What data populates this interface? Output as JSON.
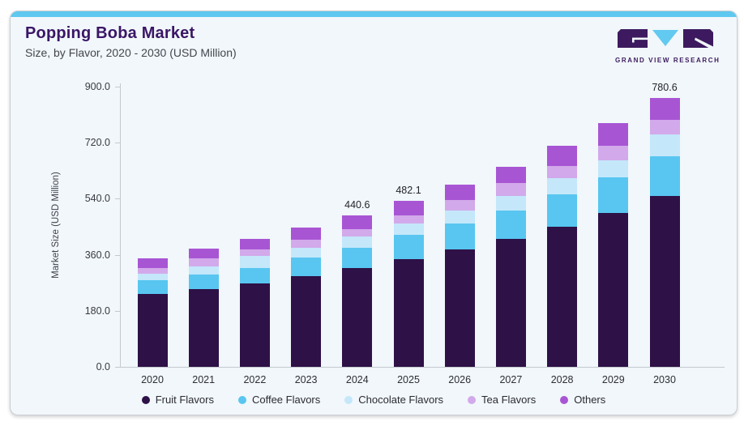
{
  "header": {
    "title": "Popping Boba Market",
    "subtitle": "Size, by Flavor, 2020 - 2030 (USD Million)"
  },
  "logo": {
    "text": "GRAND VIEW RESEARCH"
  },
  "colors": {
    "accent_bar": "#5ec8f0",
    "card_background": "#f1f7fa",
    "title_text": "#3a1666",
    "logo_purple": "#3d1a5f",
    "logo_blue": "#62c9f0",
    "axis_line": "#c4c9d0"
  },
  "chart_data": {
    "type": "bar",
    "stacked": true,
    "title": "Popping Boba Market",
    "subtitle": "Size, by Flavor, 2020 - 2030 (USD Million)",
    "ylabel": "Market Size (USD Million)",
    "xlabel": "",
    "ylim": [
      0,
      900
    ],
    "ytick_values": [
      0,
      180,
      360,
      540,
      720,
      900
    ],
    "ytick_labels": [
      "0.0",
      "180.0",
      "360.0",
      "540.0",
      "720.0",
      "900.0"
    ],
    "grid": false,
    "legend_position": "bottom",
    "categories": [
      "2020",
      "2021",
      "2022",
      "2023",
      "2024",
      "2025",
      "2026",
      "2027",
      "2028",
      "2029",
      "2030"
    ],
    "series": [
      {
        "name": "Fruit Flavors",
        "color": "#2e1147",
        "values": [
          211.6,
          225.0,
          243.1,
          264.3,
          286.1,
          312.2,
          340.9,
          372.4,
          407.7,
          446.7,
          496.1
        ]
      },
      {
        "name": "Coffee Flavors",
        "color": "#58c6f0",
        "values": [
          40.9,
          43.0,
          44.7,
          53.1,
          60.4,
          70.5,
          74.5,
          82.3,
          94.0,
          104.4,
          114.5
        ]
      },
      {
        "name": "Chocolate Flavors",
        "color": "#c4e7fa",
        "values": [
          17.9,
          23.5,
          33.6,
          29.2,
          31.3,
          33.6,
          37.6,
          41.4,
          47.0,
          48.4,
          64.2
        ]
      },
      {
        "name": "Tea Flavors",
        "color": "#d2a9ea",
        "values": [
          17.4,
          22.8,
          19.5,
          21.9,
          21.9,
          23.5,
          31.3,
          36.9,
          35.3,
          43.3,
          43.0
        ]
      },
      {
        "name": "Others",
        "color": "#a855d4",
        "values": [
          28.2,
          28.9,
          29.9,
          36.9,
          40.9,
          42.3,
          44.0,
          48.7,
          57.1,
          64.9,
          62.8
        ]
      }
    ],
    "data_labels": {
      "2024": "440.6",
      "2025": "482.1",
      "2030": "780.6"
    }
  }
}
